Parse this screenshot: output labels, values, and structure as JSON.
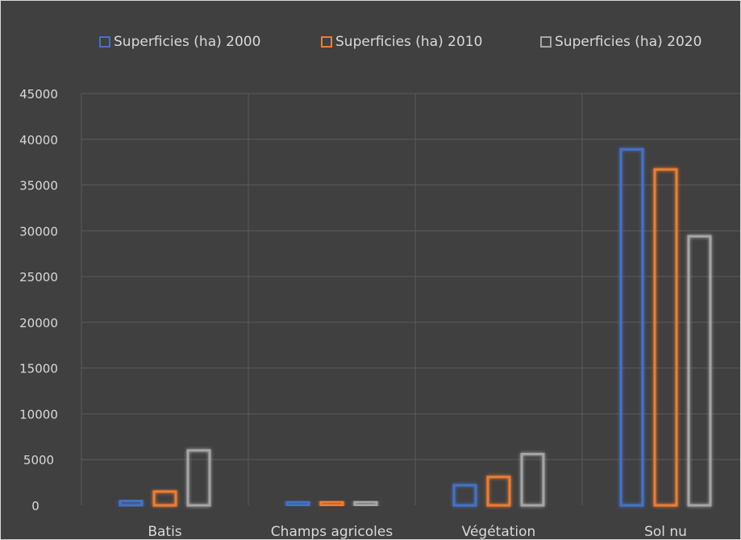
{
  "chart_data": {
    "type": "bar",
    "categories": [
      "Batis",
      "Champs agricoles",
      "Végétation",
      "Sol nu"
    ],
    "series": [
      {
        "name": "Superficies (ha) 2000",
        "values": [
          500,
          400,
          2200,
          38900
        ],
        "color": "#4472c4"
      },
      {
        "name": "Superficies (ha) 2010",
        "values": [
          1500,
          400,
          3100,
          36700
        ],
        "color": "#ed7d31"
      },
      {
        "name": "Superficies (ha) 2020",
        "values": [
          6000,
          400,
          5600,
          29400
        ],
        "color": "#a5a5a5"
      }
    ],
    "yticks": [
      "0",
      "5000",
      "10000",
      "15000",
      "20000",
      "25000",
      "30000",
      "35000",
      "40000",
      "45000"
    ],
    "ylim": [
      0,
      45000
    ],
    "grid": true,
    "legend_position": "top",
    "background": "#404040"
  }
}
